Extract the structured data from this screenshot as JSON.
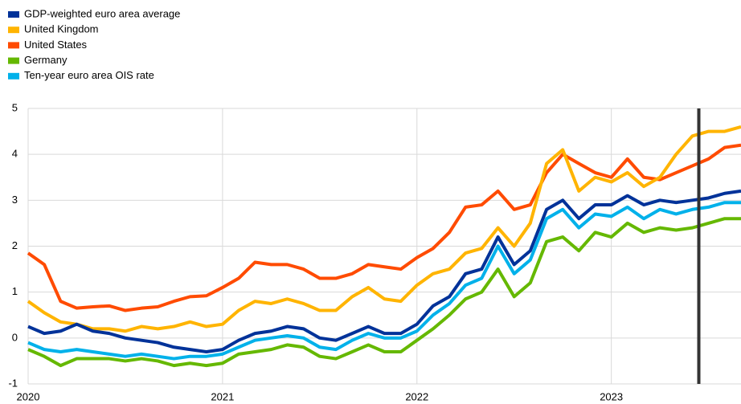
{
  "chart_data": {
    "type": "line",
    "x": [
      2020,
      2020.083,
      2020.167,
      2020.25,
      2020.333,
      2020.417,
      2020.5,
      2020.583,
      2020.667,
      2020.75,
      2020.833,
      2020.917,
      2021,
      2021.083,
      2021.167,
      2021.25,
      2021.333,
      2021.417,
      2021.5,
      2021.583,
      2021.667,
      2021.75,
      2021.833,
      2021.917,
      2022,
      2022.083,
      2022.167,
      2022.25,
      2022.333,
      2022.417,
      2022.5,
      2022.583,
      2022.667,
      2022.75,
      2022.833,
      2022.917,
      2023,
      2023.083,
      2023.167,
      2023.25,
      2023.333,
      2023.417,
      2023.5,
      2023.583,
      2023.667
    ],
    "series": [
      {
        "name": "GDP-weighted euro area average",
        "color": "#003299",
        "values": [
          0.25,
          0.1,
          0.15,
          0.3,
          0.15,
          0.1,
          0.0,
          -0.05,
          -0.1,
          -0.2,
          -0.25,
          -0.3,
          -0.25,
          -0.05,
          0.1,
          0.15,
          0.25,
          0.2,
          0.0,
          -0.05,
          0.1,
          0.25,
          0.1,
          0.1,
          0.3,
          0.7,
          0.9,
          1.4,
          1.5,
          2.2,
          1.6,
          1.9,
          2.8,
          3.0,
          2.6,
          2.9,
          2.9,
          3.1,
          2.9,
          3.0,
          2.95,
          3.0,
          3.05,
          3.15,
          3.2
        ]
      },
      {
        "name": "United Kingdom",
        "color": "#ffb400",
        "values": [
          0.8,
          0.55,
          0.35,
          0.3,
          0.2,
          0.2,
          0.15,
          0.25,
          0.2,
          0.25,
          0.35,
          0.25,
          0.3,
          0.6,
          0.8,
          0.75,
          0.85,
          0.75,
          0.6,
          0.6,
          0.9,
          1.1,
          0.85,
          0.8,
          1.15,
          1.4,
          1.5,
          1.85,
          1.95,
          2.4,
          2.0,
          2.5,
          3.8,
          4.1,
          3.2,
          3.5,
          3.4,
          3.6,
          3.3,
          3.5,
          4.0,
          4.4,
          4.5,
          4.5,
          4.6
        ]
      },
      {
        "name": "United States",
        "color": "#ff4b00",
        "values": [
          1.85,
          1.6,
          0.8,
          0.65,
          0.68,
          0.7,
          0.6,
          0.65,
          0.68,
          0.8,
          0.9,
          0.92,
          1.1,
          1.3,
          1.65,
          1.6,
          1.6,
          1.5,
          1.3,
          1.3,
          1.4,
          1.6,
          1.55,
          1.5,
          1.75,
          1.95,
          2.3,
          2.85,
          2.9,
          3.2,
          2.8,
          2.9,
          3.6,
          4.0,
          3.8,
          3.6,
          3.5,
          3.9,
          3.5,
          3.45,
          3.6,
          3.75,
          3.9,
          4.15,
          4.2
        ]
      },
      {
        "name": "Germany",
        "color": "#65b800",
        "values": [
          -0.25,
          -0.4,
          -0.6,
          -0.45,
          -0.45,
          -0.45,
          -0.5,
          -0.45,
          -0.5,
          -0.6,
          -0.55,
          -0.6,
          -0.55,
          -0.35,
          -0.3,
          -0.25,
          -0.15,
          -0.2,
          -0.4,
          -0.45,
          -0.3,
          -0.15,
          -0.3,
          -0.3,
          -0.05,
          0.2,
          0.5,
          0.85,
          1.0,
          1.5,
          0.9,
          1.2,
          2.1,
          2.2,
          1.9,
          2.3,
          2.2,
          2.5,
          2.3,
          2.4,
          2.35,
          2.4,
          2.5,
          2.6,
          2.6
        ]
      },
      {
        "name": "Ten-year euro area OIS rate",
        "color": "#00b1ea",
        "values": [
          -0.1,
          -0.25,
          -0.3,
          -0.25,
          -0.3,
          -0.35,
          -0.4,
          -0.35,
          -0.4,
          -0.45,
          -0.4,
          -0.4,
          -0.35,
          -0.2,
          -0.05,
          0.0,
          0.05,
          0.0,
          -0.2,
          -0.25,
          -0.05,
          0.1,
          0.0,
          0.0,
          0.15,
          0.5,
          0.75,
          1.15,
          1.3,
          2.0,
          1.4,
          1.7,
          2.6,
          2.8,
          2.4,
          2.7,
          2.65,
          2.85,
          2.6,
          2.8,
          2.7,
          2.8,
          2.85,
          2.95,
          2.95
        ]
      }
    ],
    "xlim": [
      2020,
      2023.667
    ],
    "xticks": [
      2020,
      2021,
      2022,
      2023
    ],
    "ylim": [
      -1,
      5
    ],
    "yticks": [
      -1,
      0,
      1,
      2,
      3,
      4,
      5
    ],
    "vline": 2023.45,
    "vline_color": "#333333",
    "grid": true,
    "legend": "top-left"
  }
}
